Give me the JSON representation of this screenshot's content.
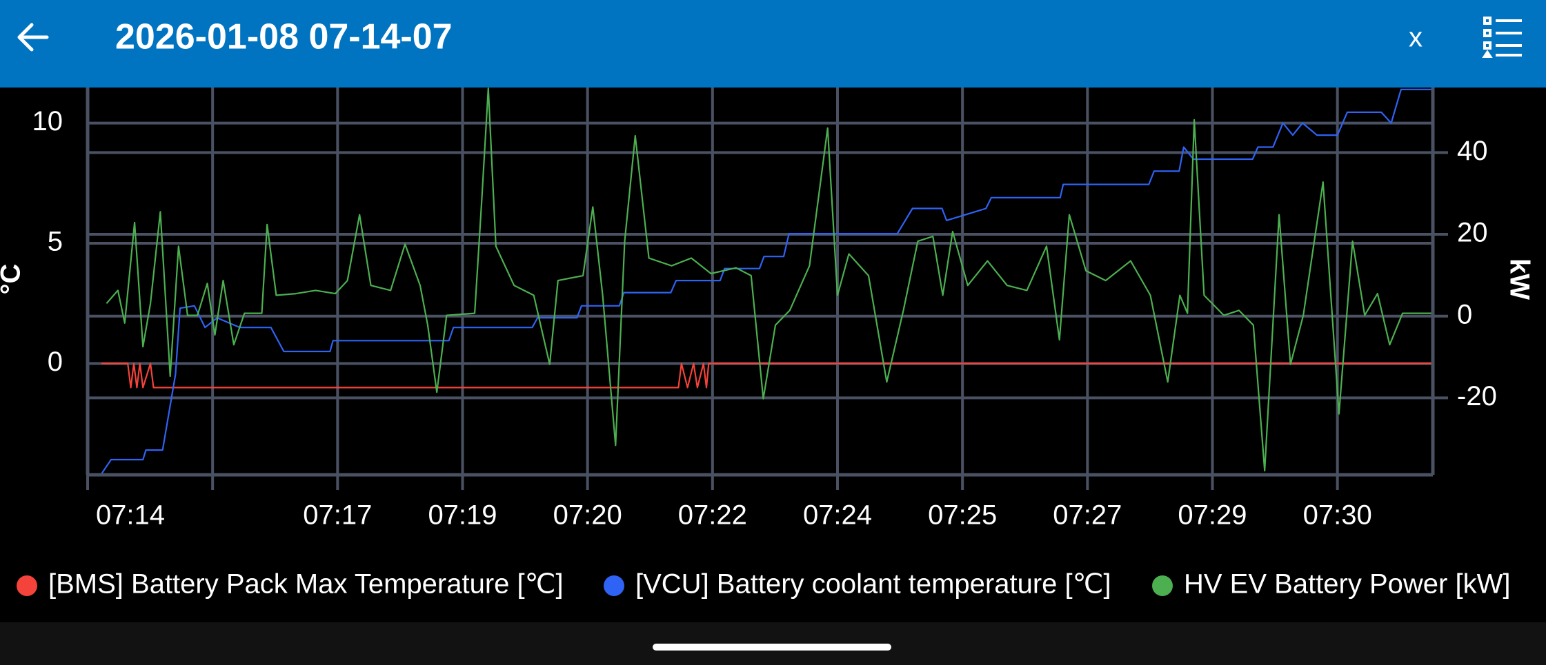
{
  "header": {
    "title": "2026-01-08 07-14-07",
    "close": "x"
  },
  "chart_data": {
    "type": "line",
    "y_label": "°C",
    "y2_label": "kW",
    "xlim": [
      14.2,
      31.96
    ],
    "xticks": [
      {
        "value": 14.2,
        "label": "07:14"
      },
      {
        "value": 15.85,
        "label": null
      },
      {
        "value": 17.5,
        "label": "07:17"
      },
      {
        "value": 19.15,
        "label": "07:19"
      },
      {
        "value": 20.8,
        "label": "07:20"
      },
      {
        "value": 22.45,
        "label": "07:22"
      },
      {
        "value": 24.1,
        "label": "07:24"
      },
      {
        "value": 25.75,
        "label": "07:25"
      },
      {
        "value": 27.4,
        "label": "07:27"
      },
      {
        "value": 29.05,
        "label": "07:29"
      },
      {
        "value": 30.7,
        "label": "07:30"
      }
    ],
    "ylim": [
      -4.63,
      11.48
    ],
    "yticks": [
      0,
      5,
      10
    ],
    "y2lim": [
      -38.8,
      55.9
    ],
    "y2ticks": [
      -20,
      0,
      20,
      40
    ],
    "grid": true,
    "series": [
      {
        "name": "[BMS] Battery Pack Max Temperature [℃]",
        "color": "#f4433b",
        "axis": "y",
        "x": [
          14.38,
          14.73,
          14.77,
          14.81,
          14.85,
          14.89,
          14.93,
          15.03,
          15.07,
          22.0,
          22.04,
          22.12,
          22.2,
          22.25,
          22.33,
          22.37,
          22.4,
          31.95
        ],
        "values": [
          0,
          0,
          -1,
          0,
          -1,
          0,
          -1,
          0,
          -1,
          -1,
          0,
          -1,
          0,
          -1,
          0,
          -1,
          0,
          0
        ]
      },
      {
        "name": "[VCU] Battery coolant temperature [℃]",
        "color": "#2f63f5",
        "axis": "y",
        "x": [
          14.38,
          14.51,
          14.93,
          14.97,
          15.19,
          15.36,
          15.42,
          15.61,
          15.75,
          15.91,
          16.21,
          16.62,
          16.79,
          17.4,
          17.44,
          18.97,
          19.03,
          20.07,
          20.14,
          20.66,
          20.72,
          21.22,
          21.28,
          21.9,
          21.97,
          22.55,
          22.61,
          23.07,
          23.13,
          23.39,
          23.46,
          24.89,
          25.09,
          25.48,
          25.54,
          26.06,
          26.13,
          27.04,
          27.08,
          28.21,
          28.28,
          28.61,
          28.67,
          28.8,
          29.58,
          29.65,
          29.85,
          29.98,
          30.11,
          30.24,
          30.43,
          30.7,
          30.83,
          31.28,
          31.41,
          31.54,
          31.95
        ],
        "values": [
          -4.6,
          -4.0,
          -4.0,
          -3.6,
          -3.6,
          -0.45,
          2.3,
          2.4,
          1.5,
          1.9,
          1.5,
          1.5,
          0.5,
          0.5,
          0.95,
          0.95,
          1.5,
          1.5,
          1.9,
          1.9,
          2.4,
          2.4,
          2.95,
          2.95,
          3.45,
          3.45,
          3.95,
          3.95,
          4.45,
          4.45,
          5.4,
          5.4,
          6.45,
          6.45,
          5.95,
          6.45,
          6.9,
          6.9,
          7.45,
          7.45,
          8.0,
          8.0,
          9.0,
          8.5,
          8.5,
          9.0,
          9.0,
          10.0,
          9.5,
          10.0,
          9.5,
          9.5,
          10.45,
          10.45,
          10.0,
          11.4,
          11.4
        ]
      },
      {
        "name": "HV EV Battery Power [kW]",
        "color": "#4caf50",
        "axis": "y2",
        "x": [
          14.45,
          14.6,
          14.69,
          14.82,
          14.93,
          15.03,
          15.16,
          15.29,
          15.4,
          15.52,
          15.65,
          15.78,
          15.88,
          15.99,
          16.13,
          16.27,
          16.5,
          16.57,
          16.69,
          16.95,
          17.21,
          17.47,
          17.63,
          17.79,
          17.94,
          18.2,
          18.39,
          18.59,
          18.69,
          18.81,
          18.94,
          19.31,
          19.4,
          19.49,
          19.59,
          19.83,
          20.09,
          20.3,
          20.41,
          20.74,
          20.87,
          21.0,
          21.17,
          21.29,
          21.43,
          21.61,
          21.91,
          22.17,
          22.43,
          22.76,
          22.96,
          23.12,
          23.28,
          23.47,
          23.73,
          23.97,
          24.1,
          24.25,
          24.51,
          24.75,
          24.97,
          25.16,
          25.36,
          25.49,
          25.62,
          25.82,
          26.08,
          26.34,
          26.6,
          26.86,
          27.03,
          27.16,
          27.38,
          27.64,
          27.97,
          28.23,
          28.46,
          28.62,
          28.72,
          28.81,
          28.94,
          29.2,
          29.4,
          29.59,
          29.74,
          29.93,
          30.08,
          30.25,
          30.51,
          30.72,
          30.9,
          31.06,
          31.23,
          31.39,
          31.56,
          31.95
        ],
        "values": [
          3.1,
          6.3,
          -1.7,
          22.9,
          -7.5,
          3.1,
          25.5,
          -14.7,
          17.1,
          0.2,
          0.2,
          8.0,
          -4.6,
          8.7,
          -7.0,
          0.7,
          0.7,
          22.4,
          5.1,
          5.5,
          6.3,
          5.5,
          8.7,
          24.8,
          7.5,
          6.3,
          17.6,
          7.5,
          -2.2,
          -18.6,
          0.2,
          0.7,
          27.2,
          55.7,
          17.1,
          7.5,
          5.1,
          -11.8,
          8.7,
          9.9,
          26.7,
          5.1,
          -31.6,
          18.3,
          44.1,
          14.2,
          12.3,
          14.2,
          10.4,
          11.8,
          9.9,
          -20.2,
          -2.2,
          1.4,
          12.3,
          46.0,
          5.1,
          15.2,
          9.9,
          -16.1,
          1.4,
          18.3,
          19.5,
          5.1,
          20.7,
          7.5,
          13.5,
          7.5,
          6.3,
          17.1,
          -5.8,
          24.8,
          11.1,
          8.7,
          13.5,
          5.1,
          -16.1,
          5.1,
          0.7,
          48.0,
          5.1,
          0.2,
          1.4,
          -2.2,
          -37.8,
          24.8,
          -11.8,
          0.2,
          32.8,
          -23.9,
          18.3,
          0.2,
          5.5,
          -7.0,
          0.7,
          0.7
        ]
      }
    ]
  }
}
